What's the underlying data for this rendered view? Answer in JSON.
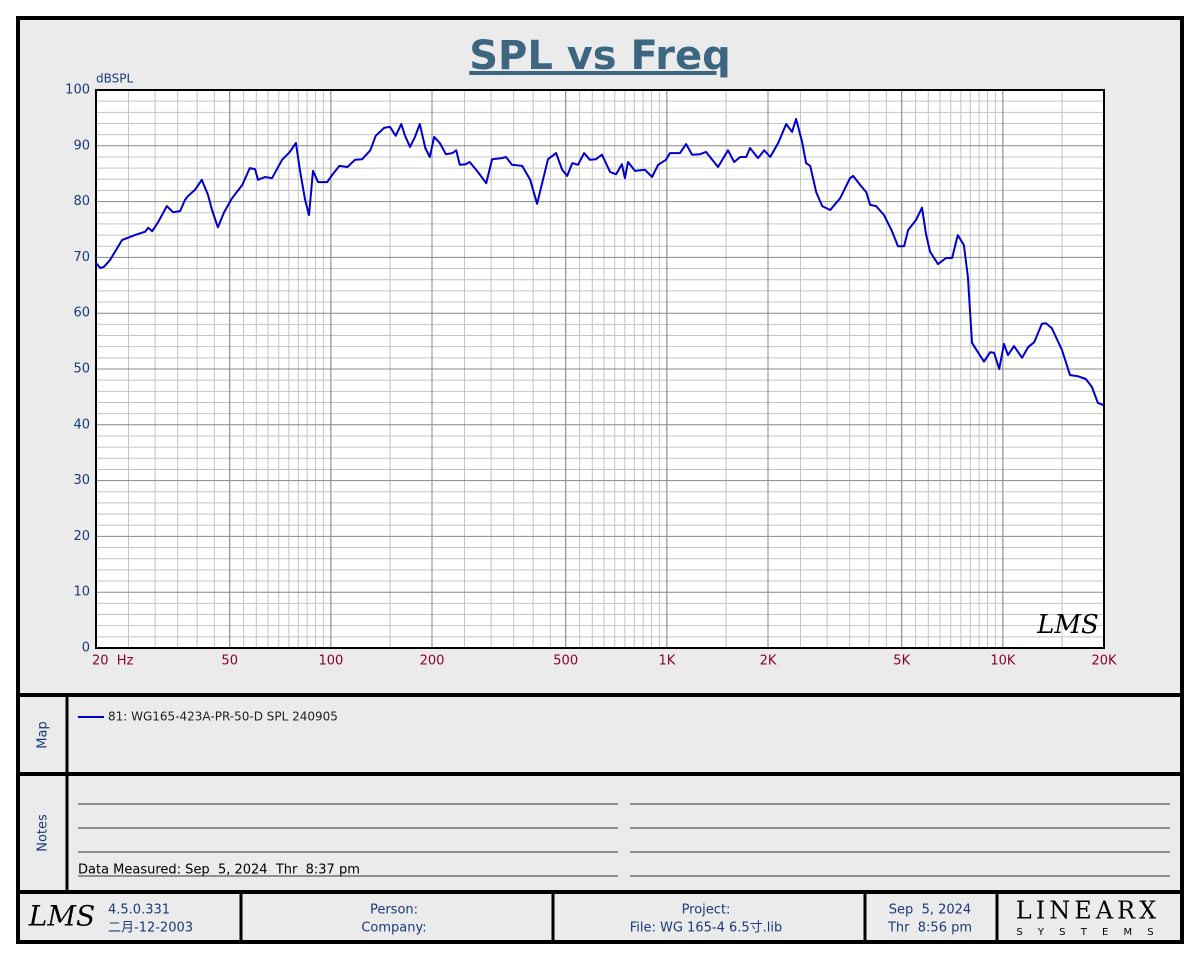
{
  "chart_data": {
    "type": "line",
    "title": "SPL vs Freq",
    "y_label": "dBSPL",
    "watermark": "LMS",
    "x": [
      20,
      20.6,
      21.1,
      22,
      23.9,
      26.1,
      28,
      28.6,
      29.4,
      30.6,
      32.5,
      33.9,
      35.6,
      36.8,
      37.6,
      39.4,
      41.3,
      43.1,
      44.3,
      46.1,
      48.1,
      50.8,
      54.5,
      57.4,
      59.5,
      60.7,
      63.7,
      66.8,
      71.6,
      75.5,
      78.7,
      80.9,
      83.8,
      86.1,
      88.5,
      91.6,
      97.5,
      101,
      106,
      112,
      118,
      124,
      131,
      136,
      144,
      150,
      156,
      162,
      166,
      172,
      178,
      184,
      191,
      197,
      203,
      211,
      220,
      230,
      236,
      242,
      252,
      259,
      274,
      290,
      302,
      323,
      332,
      346,
      371,
      392,
      411,
      425,
      443,
      468,
      488,
      505,
      523,
      544,
      567,
      590,
      615,
      641,
      678,
      706,
      735,
      750,
      766,
      804,
      861,
      904,
      942,
      994,
      1021,
      1094,
      1141,
      1189,
      1256,
      1308,
      1420,
      1521,
      1586,
      1653,
      1723,
      1768,
      1868,
      1948,
      2030,
      2145,
      2266,
      2359,
      2424,
      2527,
      2597,
      2670,
      2783,
      2900,
      3063,
      3278,
      3509,
      3583,
      3759,
      3920,
      4029,
      4191,
      4428,
      4677,
      4875,
      5082,
      5224,
      5513,
      5746,
      5904,
      6072,
      6412,
      6777,
      7064,
      7346,
      7656,
      7871,
      8094,
      8433,
      8790,
      9163,
      9419,
      9751,
      10077,
      10358,
      10797,
      11411,
      11891,
      12393,
      13065,
      13428,
      13993,
      14998,
      15846,
      16748,
      17659,
      18406,
      19185,
      20000
    ],
    "series": [
      {
        "name": "81: WG165-423A-PR-50-D SPL 240905",
        "color": "#0000cc",
        "values": [
          69,
          68.1,
          68.3,
          69.5,
          73.1,
          74,
          74.6,
          75.3,
          74.7,
          76.3,
          79.2,
          78.1,
          78.3,
          80.3,
          81,
          82.1,
          83.9,
          81.2,
          78.5,
          75.4,
          78.1,
          80.6,
          83,
          86,
          85.8,
          83.9,
          84.4,
          84.2,
          87.5,
          88.9,
          90.5,
          85.7,
          80.3,
          77.6,
          85.5,
          83.5,
          83.5,
          84.8,
          86.4,
          86.2,
          87.5,
          87.6,
          89.2,
          91.8,
          93.2,
          93.4,
          91.8,
          93.9,
          91.9,
          89.8,
          91.6,
          93.9,
          89.6,
          88,
          91.6,
          90.5,
          88.5,
          88.7,
          89.2,
          86.6,
          86.7,
          87.1,
          85.3,
          83.3,
          87.6,
          87.8,
          88,
          86.6,
          86.4,
          83.9,
          79.6,
          83.2,
          87.6,
          88.7,
          85.7,
          84.6,
          86.9,
          86.6,
          88.7,
          87.5,
          87.6,
          88.4,
          85.3,
          84.9,
          86.7,
          84.2,
          87.1,
          85.5,
          85.7,
          84.4,
          86.6,
          87.5,
          88.7,
          88.7,
          90.3,
          88.4,
          88.5,
          88.9,
          86.2,
          89.2,
          87.1,
          88,
          88,
          89.6,
          87.8,
          89.2,
          88,
          90.5,
          93.9,
          92.5,
          94.8,
          90.7,
          86.9,
          86.4,
          81.7,
          79.2,
          78.5,
          80.6,
          84.2,
          84.6,
          83,
          81.7,
          79.4,
          79.2,
          77.6,
          74.7,
          72,
          72,
          74.9,
          76.7,
          78.9,
          74.2,
          71,
          68.8,
          69.9,
          69.9,
          74,
          72.2,
          66.5,
          54.7,
          53,
          51.3,
          53,
          52.9,
          50,
          54.5,
          52.5,
          54.1,
          52,
          53.9,
          54.8,
          58.1,
          58.2,
          57.3,
          53.4,
          48.9,
          48.7,
          48.2,
          46.8,
          43.9,
          43.5
        ]
      }
    ],
    "xlim": [
      20,
      20000
    ],
    "x_log": true,
    "xticks": [
      {
        "value": 20,
        "label": "20  Hz"
      },
      50,
      100,
      200,
      500,
      {
        "value": 1000,
        "label": "1K"
      },
      {
        "value": 2000,
        "label": "2K"
      },
      {
        "value": 5000,
        "label": "5K"
      },
      {
        "value": 10000,
        "label": "10K"
      },
      {
        "value": 20000,
        "label": "20K"
      }
    ],
    "ylim": [
      0,
      100
    ],
    "yticks": [
      0,
      10,
      20,
      30,
      40,
      50,
      60,
      70,
      80,
      90,
      100
    ],
    "grid": true
  },
  "map": {
    "label": "Map"
  },
  "notes": {
    "label": "Notes",
    "measured": "Data Measured: Sep  5, 2024  Thr  8:37 pm"
  },
  "footer": {
    "logo": "LMS",
    "version": "4.5.0.331",
    "build_date": "二月-12-2003",
    "person": "Person:",
    "company": "Company:",
    "project": "Project:",
    "file": "File: WG 165-4 6.5寸.lib",
    "date": "Sep  5, 2024",
    "time": "Thr  8:56 pm",
    "brand": "LINEARX",
    "brand_sub": "S Y S T E M S"
  }
}
